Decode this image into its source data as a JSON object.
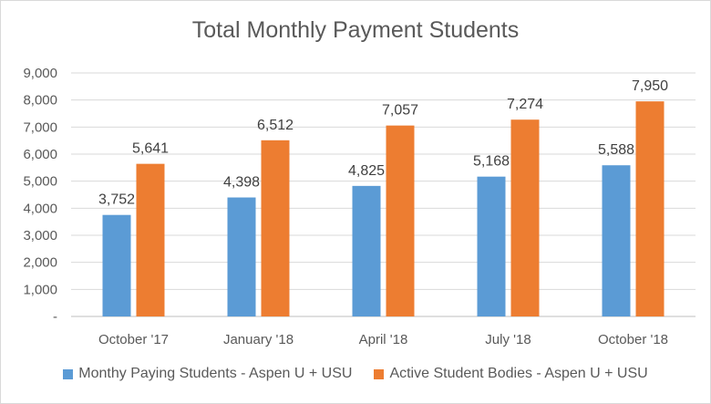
{
  "chart_data": {
    "type": "bar",
    "title": "Total Monthly Payment Students",
    "categories": [
      "October '17",
      "January '18",
      "April '18",
      "July '18",
      "October '18"
    ],
    "series": [
      {
        "name": "Monthy Paying Students - Aspen U + USU",
        "color": "#5b9bd5",
        "values": [
          3752,
          4398,
          4825,
          5168,
          5588
        ],
        "labels": [
          "3,752",
          "4,398",
          "4,825",
          "5,168",
          "5,588"
        ]
      },
      {
        "name": "Active Student Bodies - Aspen U + USU",
        "color": "#ed7d31",
        "values": [
          5641,
          6512,
          7057,
          7274,
          7950
        ],
        "labels": [
          "5,641",
          "6,512",
          "7,057",
          "7,274",
          "7,950"
        ]
      }
    ],
    "ylim": [
      0,
      9000
    ],
    "yticks": [
      0,
      1000,
      2000,
      3000,
      4000,
      5000,
      6000,
      7000,
      8000,
      9000
    ],
    "ytick_labels": [
      "-",
      "1,000",
      "2,000",
      "3,000",
      "4,000",
      "5,000",
      "6,000",
      "7,000",
      "8,000",
      "9,000"
    ],
    "grid": true,
    "legend": "bottom"
  }
}
